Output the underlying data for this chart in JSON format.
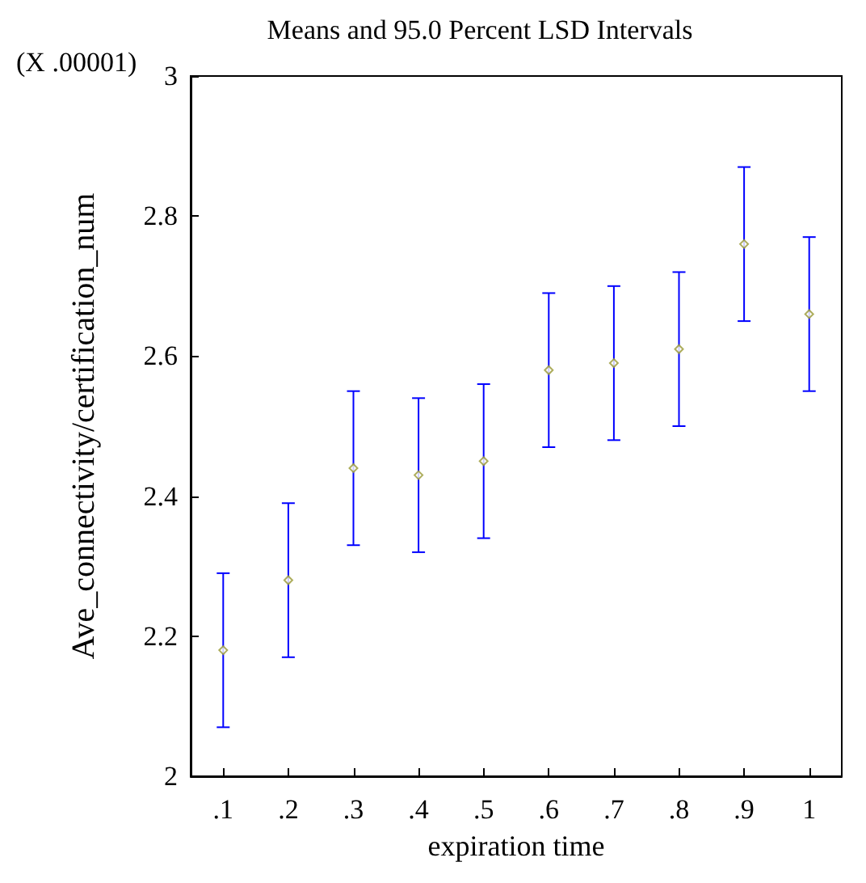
{
  "chart_data": {
    "type": "scatter",
    "title": "Means and 95.0 Percent LSD Intervals",
    "xlabel": "expiration time",
    "ylabel": "Ave_connectivity/certification_num",
    "annotations": [
      "(X .00001)"
    ],
    "categories": [
      ".1",
      ".2",
      ".3",
      ".4",
      ".5",
      ".6",
      ".7",
      ".8",
      ".9",
      "1"
    ],
    "series": [
      {
        "color": "#999933",
        "values": [
          2.18,
          2.28,
          2.44,
          2.43,
          2.45,
          2.58,
          2.59,
          2.61,
          2.76,
          2.66
        ],
        "errors": [
          0.11,
          0.11,
          0.11,
          0.11,
          0.11,
          0.11,
          0.11,
          0.11,
          0.11,
          0.11
        ]
      }
    ],
    "ylim": [
      2,
      3
    ],
    "yticks": [
      2,
      2.2,
      2.4,
      2.6,
      2.8,
      3
    ],
    "marker": "diamond",
    "grid": false
  }
}
